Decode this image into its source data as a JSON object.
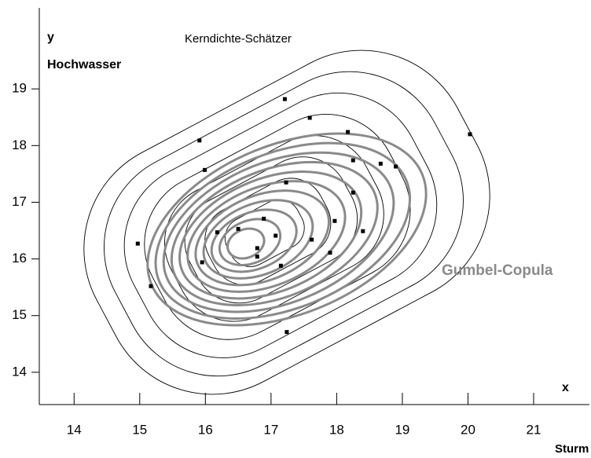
{
  "chart_data": {
    "type": "scatter",
    "title": "Kerndichte-Schätzer",
    "annotation": "Gumbel-Copula",
    "y_axis_symbol": "y",
    "y_axis_label": "Hochwasser",
    "x_axis_symbol": "x",
    "x_axis_label": "Sturm",
    "xlim": [
      13.47,
      21.85
    ],
    "ylim": [
      13.43,
      20.43
    ],
    "xticks": [
      14,
      15,
      16,
      17,
      18,
      19,
      20,
      21
    ],
    "yticks": [
      14,
      15,
      16,
      17,
      18,
      19
    ],
    "color": "#000000",
    "x": [
      17.21,
      17.59,
      20.03,
      18.17,
      15.91,
      18.25,
      18.67,
      18.9,
      15.99,
      17.23,
      18.25,
      14.97,
      15.17,
      16.18,
      16.5,
      16.89,
      17.07,
      17.97,
      18.4,
      16.79,
      16.79,
      15.95,
      17.15,
      17.62,
      17.9,
      17.24
    ],
    "y": [
      18.82,
      18.49,
      18.2,
      18.24,
      18.09,
      17.74,
      17.68,
      17.63,
      17.57,
      17.35,
      17.17,
      16.27,
      15.52,
      16.47,
      16.53,
      16.71,
      16.41,
      16.67,
      16.49,
      16.19,
      16.04,
      15.94,
      15.88,
      16.34,
      16.11,
      14.71
    ]
  }
}
